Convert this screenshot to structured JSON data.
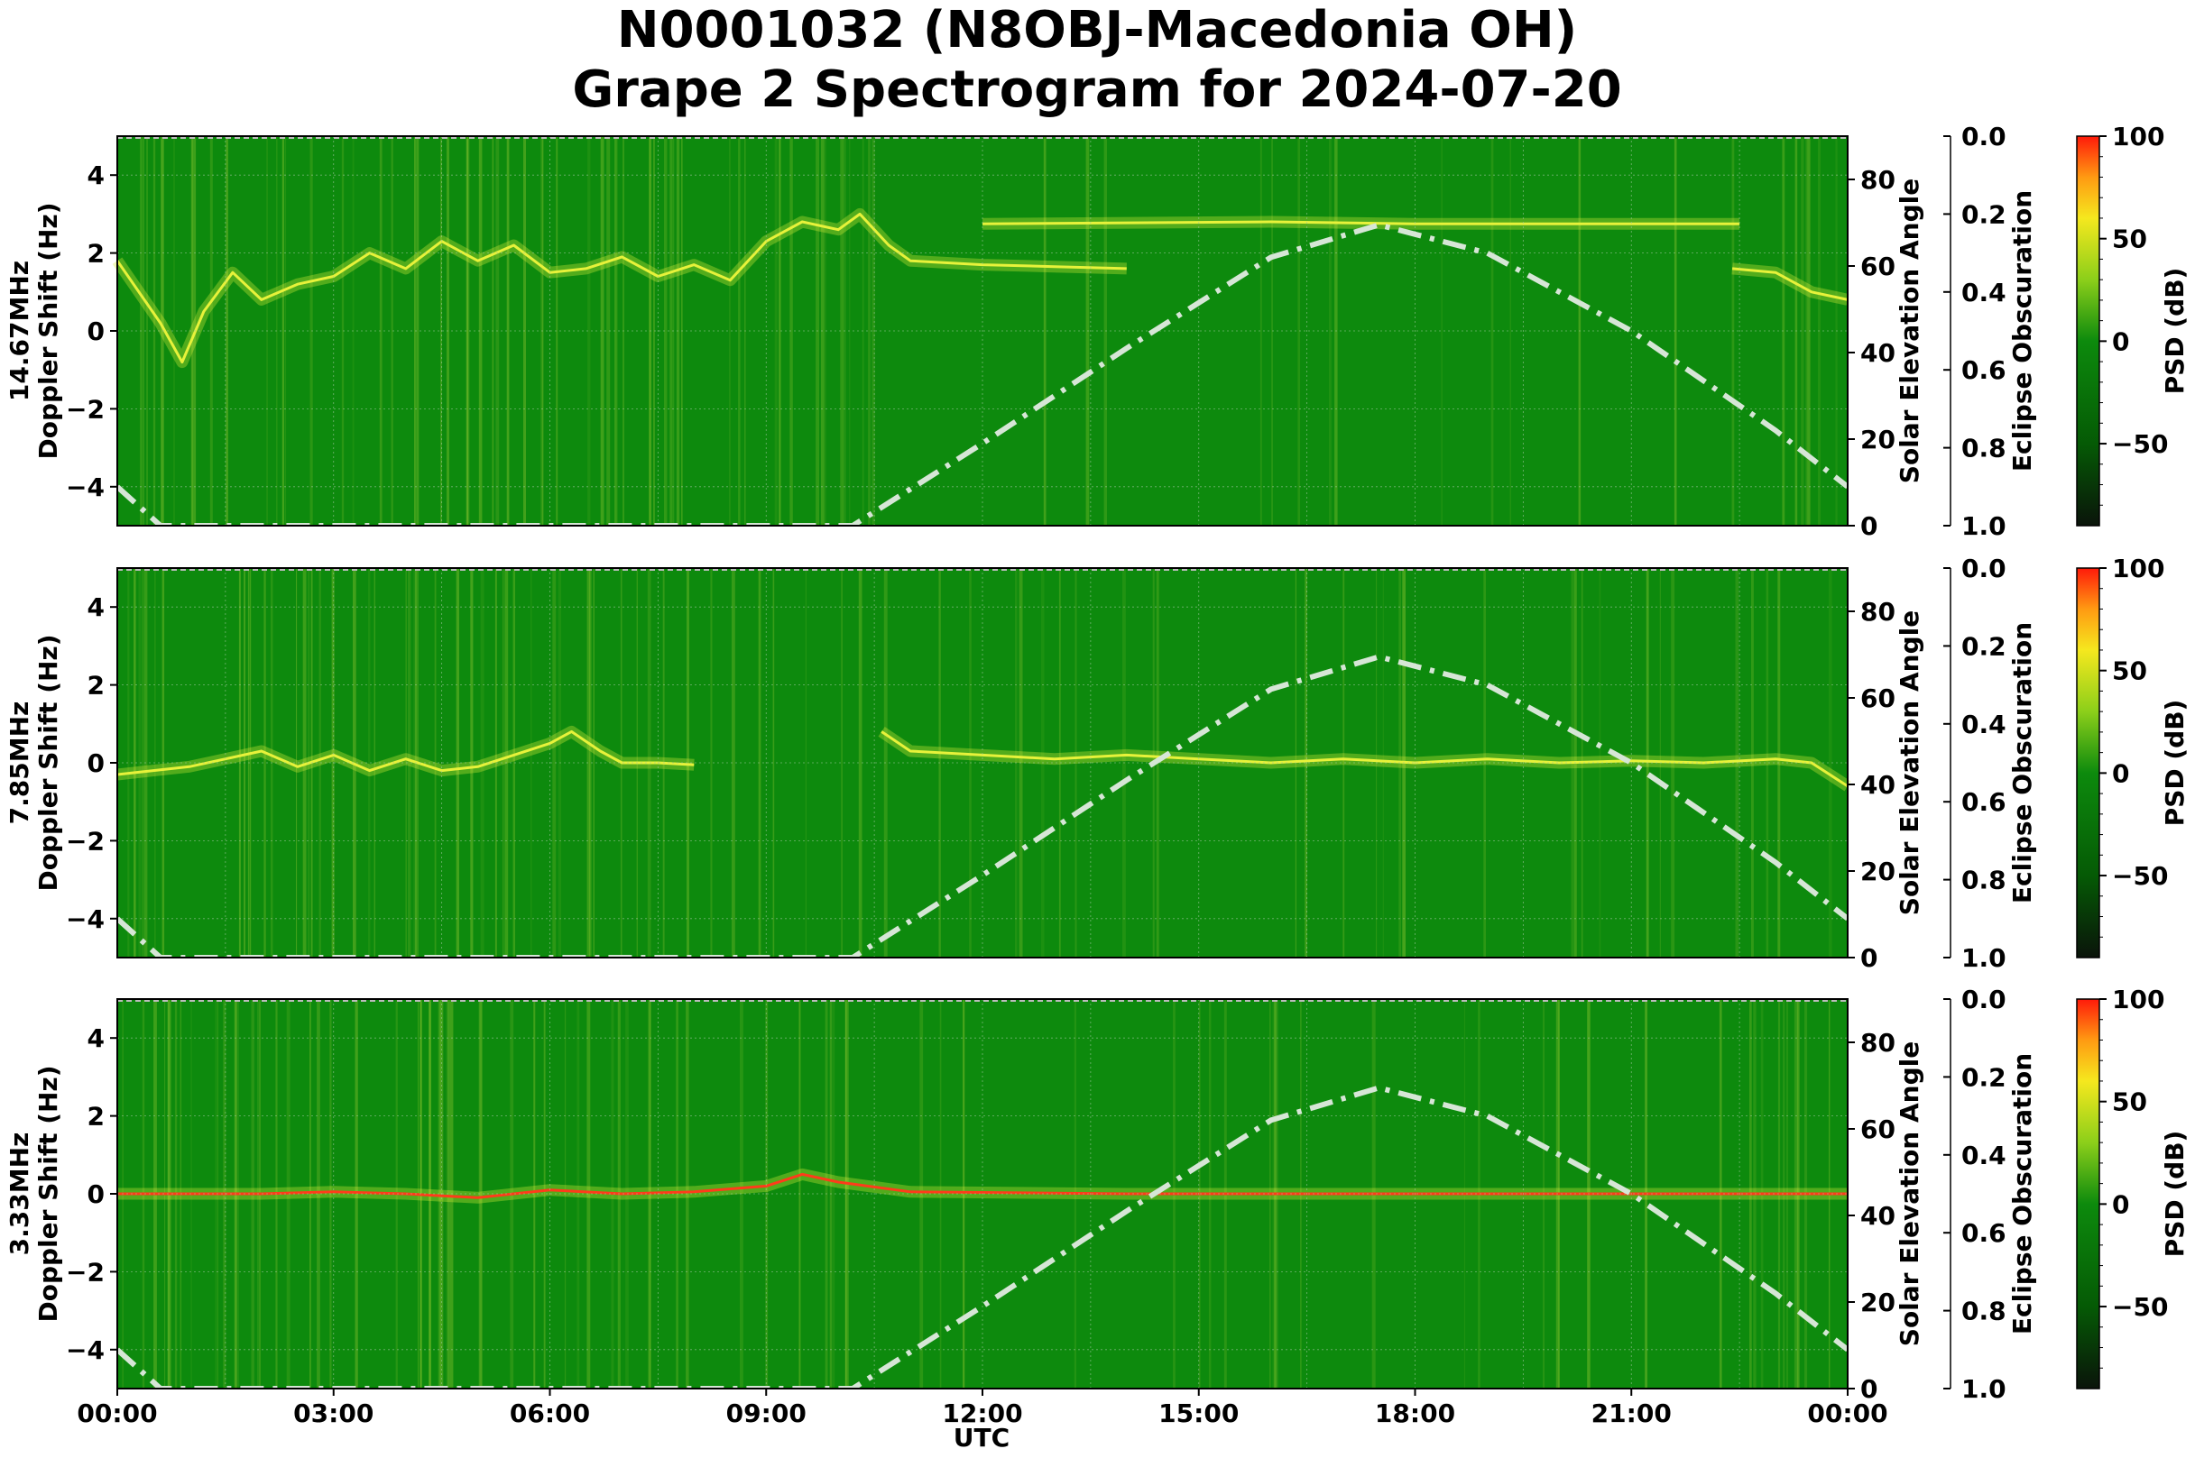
{
  "title_line1": "N0001032 (N8OBJ-Macedonia OH)",
  "title_line2": "Grape 2 Spectrogram for 2024-07-20",
  "x_axis": {
    "label": "UTC",
    "ticks": [
      "00:00",
      "03:00",
      "06:00",
      "09:00",
      "12:00",
      "15:00",
      "18:00",
      "21:00",
      "00:00"
    ],
    "range_hours": [
      0,
      24
    ]
  },
  "y_axis": {
    "label": "Doppler Shift (Hz)",
    "range": [
      -5,
      5
    ],
    "ticks": [
      "4",
      "2",
      "0",
      "−2",
      "−4"
    ]
  },
  "solar_axis": {
    "label": "Solar Elevation Angle",
    "range": [
      0,
      90
    ],
    "ticks": [
      "80",
      "60",
      "40",
      "20",
      "0"
    ]
  },
  "eclipse_axis": {
    "label": "Eclipse Obscuration",
    "range": [
      0.0,
      1.0
    ],
    "ticks": [
      "0.0",
      "0.2",
      "0.4",
      "0.6",
      "0.8",
      "1.0"
    ]
  },
  "colorbar": {
    "label": "PSD (dB)",
    "range": [
      -90,
      100
    ],
    "ticks": [
      "100",
      "50",
      "0",
      "−50"
    ],
    "stops": [
      {
        "v": -90,
        "color": "#0a140a"
      },
      {
        "v": -50,
        "color": "#055a05"
      },
      {
        "v": 0,
        "color": "#0d8a0d"
      },
      {
        "v": 30,
        "color": "#8ccf1a"
      },
      {
        "v": 60,
        "color": "#f5e81e"
      },
      {
        "v": 80,
        "color": "#ff9a12"
      },
      {
        "v": 100,
        "color": "#ff1a0a"
      }
    ]
  },
  "colors": {
    "background_green": "#0d8a0d",
    "signal_yellow": "#e7f23a",
    "signal_red": "#ff3b1a",
    "solar_curve": "#d6e6d6"
  },
  "chart_data": [
    {
      "type": "heatmap",
      "panel_label": "14.67MHz",
      "ylabel": "Doppler Shift (Hz)",
      "xlabel": "",
      "ylim": [
        -5,
        5
      ],
      "trace": [
        [
          0.0,
          1.8
        ],
        [
          0.6,
          0.2
        ],
        [
          0.9,
          -0.8
        ],
        [
          1.2,
          0.5
        ],
        [
          1.6,
          1.5
        ],
        [
          2.0,
          0.8
        ],
        [
          2.5,
          1.2
        ],
        [
          3.0,
          1.4
        ],
        [
          3.5,
          2.0
        ],
        [
          4.0,
          1.6
        ],
        [
          4.5,
          2.3
        ],
        [
          5.0,
          1.8
        ],
        [
          5.5,
          2.2
        ],
        [
          6.0,
          1.5
        ],
        [
          6.5,
          1.6
        ],
        [
          7.0,
          1.9
        ],
        [
          7.5,
          1.4
        ],
        [
          8.0,
          1.7
        ],
        [
          8.5,
          1.3
        ],
        [
          9.0,
          2.3
        ],
        [
          9.5,
          2.8
        ],
        [
          10.0,
          2.6
        ],
        [
          10.3,
          3.0
        ],
        [
          10.7,
          2.2
        ],
        [
          11.0,
          1.8
        ],
        [
          12.0,
          1.7
        ],
        [
          13.0,
          1.65
        ],
        [
          14.0,
          1.6
        ]
      ],
      "trace2": [
        [
          12.0,
          2.75
        ],
        [
          16.0,
          2.8
        ],
        [
          18.0,
          2.75
        ],
        [
          22.5,
          2.75
        ]
      ],
      "trace3": [
        [
          22.4,
          1.6
        ],
        [
          23.0,
          1.5
        ],
        [
          23.5,
          1.0
        ],
        [
          24.0,
          0.8
        ]
      ],
      "solar_elevation": [
        [
          0.0,
          9.0
        ],
        [
          0.6,
          0.0
        ],
        [
          10.2,
          0.0
        ],
        [
          12.0,
          19.0
        ],
        [
          14.0,
          41.0
        ],
        [
          16.0,
          62.0
        ],
        [
          17.5,
          69.5
        ],
        [
          19.0,
          63.0
        ],
        [
          21.0,
          45.0
        ],
        [
          23.0,
          22.0
        ],
        [
          24.0,
          9.0
        ]
      ],
      "grid": true
    },
    {
      "type": "heatmap",
      "panel_label": "7.85MHz",
      "ylabel": "Doppler Shift (Hz)",
      "xlabel": "",
      "ylim": [
        -5,
        5
      ],
      "trace": [
        [
          0.0,
          -0.3
        ],
        [
          0.5,
          -0.2
        ],
        [
          1.0,
          -0.1
        ],
        [
          1.5,
          0.1
        ],
        [
          2.0,
          0.3
        ],
        [
          2.5,
          -0.1
        ],
        [
          3.0,
          0.2
        ],
        [
          3.5,
          -0.2
        ],
        [
          4.0,
          0.1
        ],
        [
          4.5,
          -0.2
        ],
        [
          5.0,
          -0.1
        ],
        [
          5.5,
          0.2
        ],
        [
          6.0,
          0.5
        ],
        [
          6.3,
          0.8
        ],
        [
          6.7,
          0.3
        ],
        [
          7.0,
          0.0
        ],
        [
          7.5,
          0.0
        ],
        [
          8.0,
          -0.05
        ]
      ],
      "trace2": [
        [
          10.6,
          0.8
        ],
        [
          11.0,
          0.3
        ],
        [
          12.0,
          0.2
        ],
        [
          13.0,
          0.1
        ],
        [
          14.0,
          0.2
        ],
        [
          15.0,
          0.1
        ],
        [
          16.0,
          0.0
        ],
        [
          17.0,
          0.1
        ],
        [
          18.0,
          0.0
        ],
        [
          19.0,
          0.1
        ],
        [
          20.0,
          0.0
        ],
        [
          21.0,
          0.05
        ],
        [
          22.0,
          0.0
        ],
        [
          23.0,
          0.1
        ],
        [
          23.5,
          0.0
        ],
        [
          24.0,
          -0.6
        ]
      ],
      "solar_elevation": [
        [
          0.0,
          9.0
        ],
        [
          0.6,
          0.0
        ],
        [
          10.2,
          0.0
        ],
        [
          12.0,
          19.0
        ],
        [
          14.0,
          41.0
        ],
        [
          16.0,
          62.0
        ],
        [
          17.5,
          69.5
        ],
        [
          19.0,
          63.0
        ],
        [
          21.0,
          45.0
        ],
        [
          23.0,
          22.0
        ],
        [
          24.0,
          9.0
        ]
      ],
      "grid": true
    },
    {
      "type": "heatmap",
      "panel_label": "3.33MHz",
      "ylabel": "Doppler Shift (Hz)",
      "xlabel": "UTC",
      "ylim": [
        -5,
        5
      ],
      "trace": [
        [
          0.0,
          0.0
        ],
        [
          1.0,
          0.0
        ],
        [
          2.0,
          0.0
        ],
        [
          3.0,
          0.05
        ],
        [
          4.0,
          0.0
        ],
        [
          5.0,
          -0.1
        ],
        [
          6.0,
          0.1
        ],
        [
          7.0,
          0.0
        ],
        [
          8.0,
          0.05
        ],
        [
          9.0,
          0.2
        ],
        [
          9.5,
          0.5
        ],
        [
          10.0,
          0.3
        ],
        [
          11.0,
          0.05
        ],
        [
          14.0,
          0.0
        ],
        [
          18.0,
          0.0
        ],
        [
          21.0,
          0.0
        ],
        [
          24.0,
          0.0
        ]
      ],
      "solar_elevation": [
        [
          0.0,
          9.0
        ],
        [
          0.6,
          0.0
        ],
        [
          10.2,
          0.0
        ],
        [
          12.0,
          19.0
        ],
        [
          14.0,
          41.0
        ],
        [
          16.0,
          62.0
        ],
        [
          17.5,
          69.5
        ],
        [
          19.0,
          63.0
        ],
        [
          21.0,
          45.0
        ],
        [
          23.0,
          22.0
        ],
        [
          24.0,
          9.0
        ]
      ],
      "grid": true
    }
  ]
}
